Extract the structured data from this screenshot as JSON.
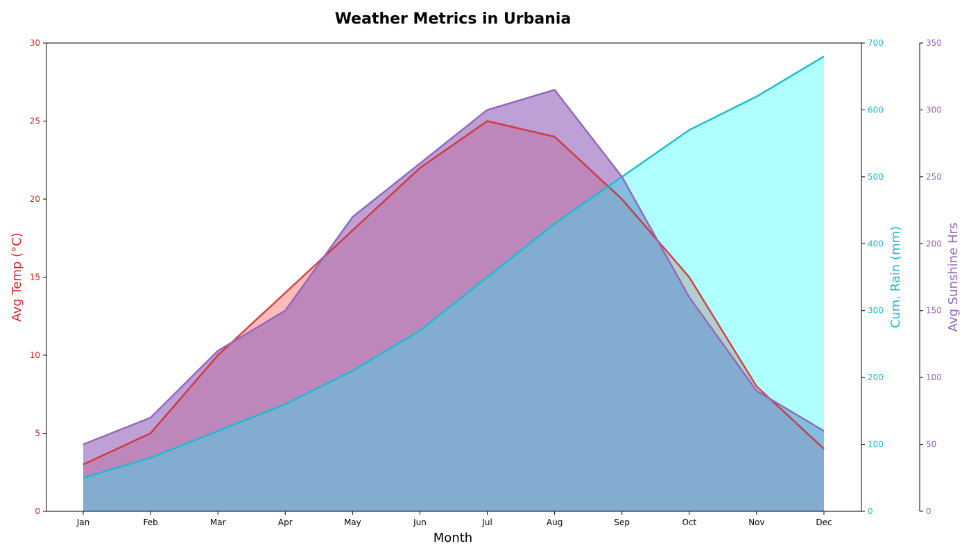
{
  "chart_data": {
    "type": "area",
    "title": "Weather Metrics in Urbania",
    "xlabel": "Month",
    "categories": [
      "Jan",
      "Feb",
      "Mar",
      "Apr",
      "May",
      "Jun",
      "Jul",
      "Aug",
      "Sep",
      "Oct",
      "Nov",
      "Dec"
    ],
    "series": [
      {
        "name": "Avg Temp (°C)",
        "axis": "left",
        "axis_label": "Avg Temp (°C)",
        "ylim": [
          0,
          30
        ],
        "yticks": [
          0,
          5,
          10,
          15,
          20,
          25,
          30
        ],
        "color": "#d62728",
        "values": [
          3,
          5,
          10,
          14,
          18,
          22,
          25,
          24,
          20,
          15,
          8,
          4
        ]
      },
      {
        "name": "Cum. Rain (mm)",
        "axis": "right",
        "axis_label": "Cum. Rain (mm)",
        "ylim": [
          0,
          700
        ],
        "yticks": [
          0,
          100,
          200,
          300,
          400,
          500,
          600,
          700
        ],
        "color": "#17becf",
        "fill": "#00ffff",
        "values": [
          50,
          80,
          120,
          160,
          210,
          270,
          350,
          430,
          500,
          570,
          620,
          680
        ]
      },
      {
        "name": "Avg Sunshine Hrs",
        "axis": "far-right",
        "axis_label": "Avg Sunshine Hrs",
        "ylim": [
          0,
          350
        ],
        "yticks": [
          0,
          50,
          100,
          150,
          200,
          250,
          300,
          350
        ],
        "color": "#9467bd",
        "values": [
          50,
          70,
          120,
          150,
          220,
          260,
          300,
          315,
          250,
          160,
          90,
          60
        ]
      }
    ],
    "grid": false,
    "legend": "none"
  }
}
